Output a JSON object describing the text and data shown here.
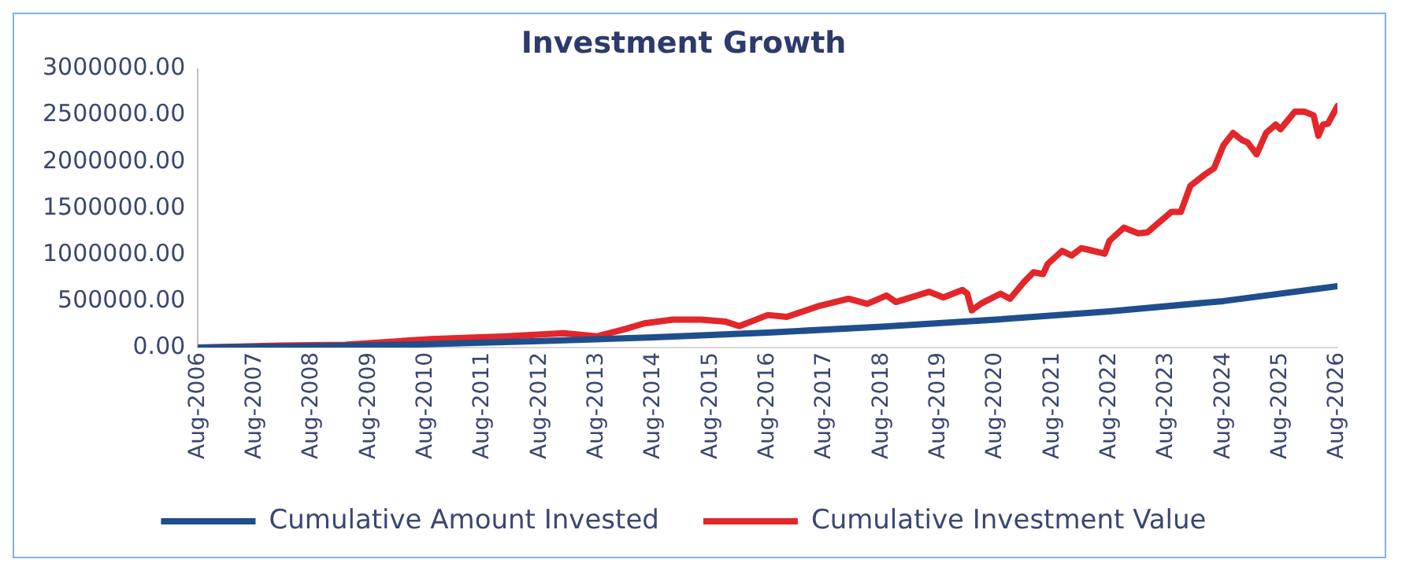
{
  "chart_data": {
    "type": "line",
    "title": "Investment Growth",
    "xlim": [
      "2006-08",
      "2026-08"
    ],
    "xticks": [
      {
        "value": "2006-08",
        "label": "Aug-2006"
      },
      {
        "value": "2007-08",
        "label": "Aug-2007"
      },
      {
        "value": "2008-08",
        "label": "Aug-2008"
      },
      {
        "value": "2009-08",
        "label": "Aug-2009"
      },
      {
        "value": "2010-08",
        "label": "Aug-2010"
      },
      {
        "value": "2011-08",
        "label": "Aug-2011"
      },
      {
        "value": "2012-08",
        "label": "Aug-2012"
      },
      {
        "value": "2013-08",
        "label": "Aug-2013"
      },
      {
        "value": "2014-08",
        "label": "Aug-2014"
      },
      {
        "value": "2015-08",
        "label": "Aug-2015"
      },
      {
        "value": "2016-08",
        "label": "Aug-2016"
      },
      {
        "value": "2017-08",
        "label": "Aug-2017"
      },
      {
        "value": "2018-08",
        "label": "Aug-2018"
      },
      {
        "value": "2019-08",
        "label": "Aug-2019"
      },
      {
        "value": "2020-08",
        "label": "Aug-2020"
      },
      {
        "value": "2021-08",
        "label": "Aug-2021"
      },
      {
        "value": "2022-08",
        "label": "Aug-2022"
      },
      {
        "value": "2023-08",
        "label": "Aug-2023"
      },
      {
        "value": "2024-08",
        "label": "Aug-2024"
      },
      {
        "value": "2025-08",
        "label": "Aug-2025"
      },
      {
        "value": "2026-08",
        "label": "Aug-2026"
      }
    ],
    "ylim": [
      0,
      3000000
    ],
    "yticks": [
      {
        "value": 0,
        "label": "0.00"
      },
      {
        "value": 500000,
        "label": "500000.00"
      },
      {
        "value": 1000000,
        "label": "1000000.00"
      },
      {
        "value": 1500000,
        "label": "1500000.00"
      },
      {
        "value": 2000000,
        "label": "2000000.00"
      },
      {
        "value": 2500000,
        "label": "2500000.00"
      },
      {
        "value": 3000000,
        "label": "3000000.00"
      }
    ],
    "grid": false,
    "legend": "bottom",
    "marker": "none",
    "line_style": "solid",
    "series": [
      {
        "name": "Cumulative Amount Invested",
        "color": "#1f4e8c",
        "x": [
          "2006-08",
          "2008-08",
          "2010-08",
          "2012-08",
          "2014-08",
          "2016-08",
          "2018-08",
          "2020-08",
          "2022-08",
          "2024-08",
          "2026-08"
        ],
        "values": [
          0,
          12000,
          35000,
          70000,
          110000,
          160000,
          225000,
          300000,
          390000,
          500000,
          660000
        ]
      },
      {
        "name": "Cumulative Investment Value",
        "color": "#e3262a",
        "x": [
          "2006-08",
          "2008-01",
          "2009-03",
          "2010-09",
          "2012-01",
          "2013-01",
          "2013-08",
          "2014-02",
          "2014-06",
          "2014-12",
          "2015-06",
          "2015-11",
          "2016-02",
          "2016-08",
          "2016-12",
          "2017-07",
          "2018-01",
          "2018-05",
          "2018-09",
          "2018-11",
          "2019-06",
          "2019-09",
          "2020-01",
          "2020-02",
          "2020-03",
          "2020-05",
          "2020-09",
          "2020-11",
          "2021-02",
          "2021-04",
          "2021-06",
          "2021-07",
          "2021-10",
          "2021-12",
          "2022-02",
          "2022-03",
          "2022-07",
          "2022-08",
          "2022-11",
          "2023-02",
          "2023-04",
          "2023-09",
          "2023-11",
          "2024-01",
          "2024-04",
          "2024-06",
          "2024-08",
          "2024-10",
          "2024-12",
          "2025-01",
          "2025-03",
          "2025-05",
          "2025-07",
          "2025-08",
          "2025-11",
          "2026-01",
          "2026-03",
          "2026-04",
          "2026-05",
          "2026-06",
          "2026-08"
        ],
        "values": [
          0,
          20000,
          30000,
          90000,
          120000,
          155000,
          120000,
          200000,
          260000,
          300000,
          300000,
          280000,
          230000,
          350000,
          330000,
          450000,
          525000,
          470000,
          560000,
          490000,
          600000,
          540000,
          620000,
          580000,
          400000,
          475000,
          580000,
          525000,
          710000,
          810000,
          790000,
          900000,
          1040000,
          990000,
          1070000,
          1060000,
          1010000,
          1150000,
          1290000,
          1230000,
          1240000,
          1460000,
          1460000,
          1740000,
          1860000,
          1930000,
          2180000,
          2310000,
          2230000,
          2210000,
          2080000,
          2310000,
          2400000,
          2350000,
          2540000,
          2540000,
          2500000,
          2280000,
          2400000,
          2410000,
          2600000
        ]
      }
    ]
  }
}
